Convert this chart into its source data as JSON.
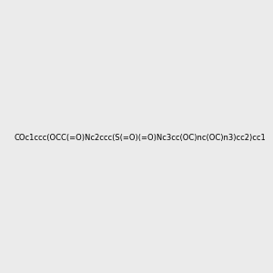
{
  "smiles": "COc1ccc(OCC(=O)Nc2ccc(S(=O)(=O)Nc3cc(OC)nc(OC)n3)cc2)cc1",
  "image_size": 300,
  "background_color": "#ebebeb"
}
